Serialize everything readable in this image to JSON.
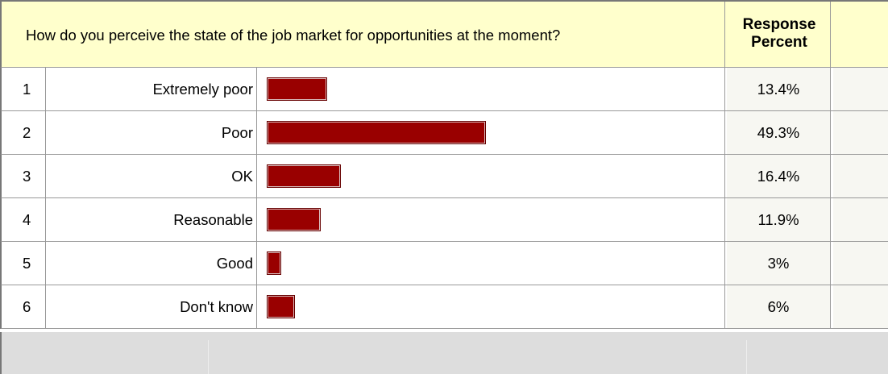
{
  "chart_data": {
    "type": "bar",
    "title": "How do you perceive the state of the job market for opportunities at the moment?",
    "value_header": "Response Percent",
    "numbers": [
      "1",
      "2",
      "3",
      "4",
      "5",
      "6"
    ],
    "categories": [
      "Extremely poor",
      "Poor",
      "OK",
      "Reasonable",
      "Good",
      "Don't know"
    ],
    "values": [
      13.4,
      49.3,
      16.4,
      11.9,
      3,
      6
    ],
    "value_labels": [
      "13.4%",
      "49.3%",
      "16.4%",
      "11.9%",
      "3%",
      "6%"
    ],
    "unit": "%",
    "bar_color": "#990000",
    "header_color": "#ffffcc"
  }
}
